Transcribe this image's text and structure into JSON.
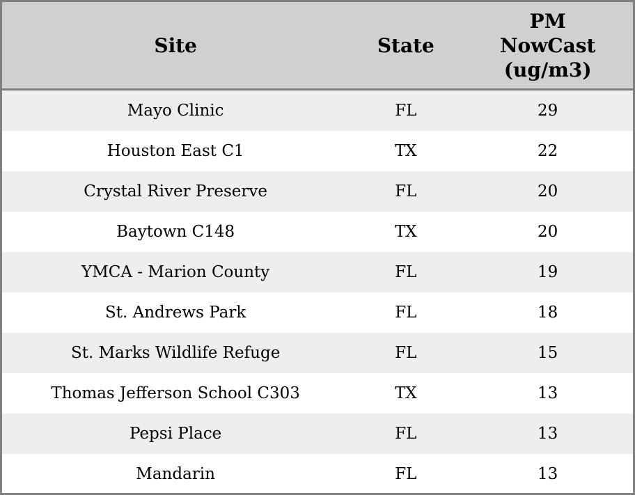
{
  "header": {
    "site": "Site",
    "state": "State",
    "pm_full": "PM NowCast (ug/m3)",
    "pm_lines": [
      "PM",
      "NowCast",
      "(ug/m3)"
    ]
  },
  "rows": [
    {
      "site": "Mayo Clinic",
      "state": "FL",
      "pm": "29"
    },
    {
      "site": "Houston East C1",
      "state": "TX",
      "pm": "22"
    },
    {
      "site": "Crystal River Preserve",
      "state": "FL",
      "pm": "20"
    },
    {
      "site": "Baytown C148",
      "state": "TX",
      "pm": "20"
    },
    {
      "site": "YMCA - Marion County",
      "state": "FL",
      "pm": "19"
    },
    {
      "site": "St. Andrews Park",
      "state": "FL",
      "pm": "18"
    },
    {
      "site": "St. Marks Wildlife Refuge",
      "state": "FL",
      "pm": "15"
    },
    {
      "site": "Thomas Jefferson School C303",
      "state": "TX",
      "pm": "13"
    },
    {
      "site": "Pepsi Place",
      "state": "FL",
      "pm": "13"
    },
    {
      "site": "Mandarin",
      "state": "FL",
      "pm": "13"
    }
  ],
  "colors": {
    "border": "#808080",
    "header_bg": "#d0d0d0",
    "row_stripe_bg": "#eeeeee",
    "row_bg": "#ffffff",
    "text": "#000000"
  },
  "chart_data": {
    "type": "table",
    "title": "",
    "columns": [
      "Site",
      "State",
      "PM NowCast (ug/m3)"
    ],
    "rows": [
      [
        "Mayo Clinic",
        "FL",
        29
      ],
      [
        "Houston East C1",
        "TX",
        22
      ],
      [
        "Crystal River Preserve",
        "FL",
        20
      ],
      [
        "Baytown C148",
        "TX",
        20
      ],
      [
        "YMCA - Marion County",
        "FL",
        19
      ],
      [
        "St. Andrews Park",
        "FL",
        18
      ],
      [
        "St. Marks Wildlife Refuge",
        "FL",
        15
      ],
      [
        "Thomas Jefferson School C303",
        "TX",
        13
      ],
      [
        "Pepsi Place",
        "FL",
        13
      ],
      [
        "Mandarin",
        "FL",
        13
      ]
    ],
    "layout": {
      "striped_rows": true,
      "header_background": "#d0d0d0",
      "cell_alignment": "center"
    }
  }
}
